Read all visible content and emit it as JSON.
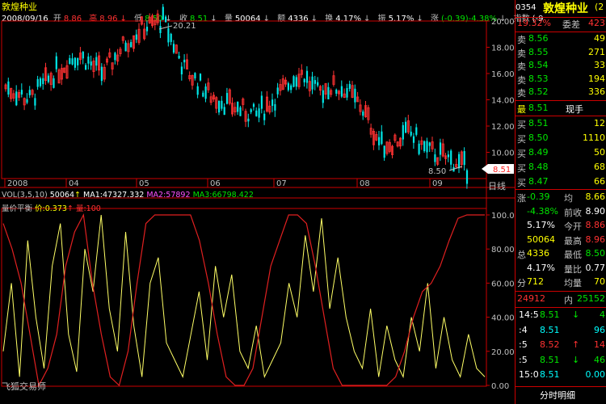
{
  "stock": {
    "name": "敦煌种业"
  },
  "infobar": {
    "date": "2008/09/16",
    "open_label": "开",
    "open": "8.86",
    "high_label": "高",
    "high": "8.96",
    "low_label": "低",
    "low": "8.50",
    "close_label": "收",
    "close": "8.51",
    "vol_label": "量",
    "vol": "50064",
    "amt_label": "额",
    "amt": "4336",
    "turn_label": "换",
    "turn": "4.17%",
    "amp_label": "振",
    "amp": "5.17%",
    "chg_label": "涨",
    "chg": "(-0.39)-4.38%",
    "idx_label": "指数",
    "idx": "(-9"
  },
  "main_chart": {
    "peak_label": "20.21",
    "low_label": "8.50",
    "price_tag": "8.51",
    "y_ticks": [
      "20.00",
      "18.00",
      "16.00",
      "14.00",
      "12.00",
      "10.00"
    ],
    "x_ticks": [
      "2008",
      "04",
      "05",
      "06",
      "07",
      "08",
      "09"
    ],
    "period_label": "日线"
  },
  "volume_legend": {
    "name": "VOL(3,5,10)",
    "value": "50064",
    "ma1": "MA1:47327.332",
    "ma2": "MA2:57892",
    "ma3": "MA3:66798.422"
  },
  "indicator": {
    "name": "量价平衡",
    "price_label": "价:0.373",
    "vol_label": "量:100",
    "y_ticks": [
      "100.00",
      "80.00",
      "60.00",
      "40.00",
      "20.00",
      "0.00"
    ],
    "watermark": "飞狐交易师"
  },
  "right_panel": {
    "code": "0354",
    "name": "敦煌种业",
    "name_suffix": "(2",
    "weibi": "19.32%",
    "weicha_label": "委差",
    "weicha": "423",
    "asks": [
      {
        "label": "卖",
        "price": "8.56",
        "vol": "49"
      },
      {
        "label": "卖",
        "price": "8.55",
        "vol": "271"
      },
      {
        "label": "卖",
        "price": "8.54",
        "vol": "33"
      },
      {
        "label": "卖",
        "price": "8.53",
        "vol": "194"
      },
      {
        "label": "卖",
        "price": "8.52",
        "vol": "336"
      }
    ],
    "last_label": "最",
    "last": "8.51",
    "last_vol_label": "现手",
    "bids": [
      {
        "label": "买",
        "price": "8.51",
        "vol": "12"
      },
      {
        "label": "买",
        "price": "8.50",
        "vol": "1110"
      },
      {
        "label": "买",
        "price": "8.49",
        "vol": "50"
      },
      {
        "label": "买",
        "price": "8.48",
        "vol": "68"
      },
      {
        "label": "买",
        "price": "8.47",
        "vol": "66"
      }
    ],
    "stats": [
      {
        "l": "涨",
        "v": "-0.39",
        "l2": "均",
        "v2": "8.66",
        "c1": "green",
        "c2": "yellow"
      },
      {
        "l": "",
        "v": "-4.38%",
        "l2": "前收",
        "v2": "8.90",
        "c1": "green",
        "c2": "white"
      },
      {
        "l": "",
        "v": "5.17%",
        "l2": "今开",
        "v2": "8.86",
        "c1": "white",
        "c2": "red"
      },
      {
        "l": "",
        "v": "50064",
        "l2": "最高",
        "v2": "8.96",
        "c1": "yellow",
        "c2": "red"
      },
      {
        "l": "总",
        "v": "4336",
        "l2": "最低",
        "v2": "8.50",
        "c1": "yellow",
        "c2": "green"
      },
      {
        "l": "",
        "v": "4.17%",
        "l2": "量比",
        "v2": "0.77",
        "c1": "white",
        "c2": "white"
      },
      {
        "l": "分",
        "v": "712",
        "l2": "均量",
        "v2": "70",
        "c1": "yellow",
        "c2": "yellow"
      }
    ],
    "outer": "24912",
    "inner_label": "内",
    "inner": "25152",
    "ticks": [
      {
        "t": "14:5",
        "p": "8.51",
        "dir": "down",
        "v": "4",
        "c": "green"
      },
      {
        "t": ":4",
        "p": "8.51",
        "dir": "",
        "v": "96",
        "c": "cyan"
      },
      {
        "t": ":5",
        "p": "8.52",
        "dir": "up",
        "v": "14",
        "c": "red"
      },
      {
        "t": ":5",
        "p": "8.51",
        "dir": "down",
        "v": "46",
        "c": "green"
      },
      {
        "t": "15:0",
        "p": "8.51",
        "dir": "",
        "v": "0.00",
        "c": "cyan"
      }
    ],
    "footer": "分时明细"
  },
  "colors": {
    "up": "#ff3232",
    "down": "#00e6e6",
    "line_yellow": "#ffff66",
    "line_red": "#e02020",
    "border": "#cc0000"
  }
}
